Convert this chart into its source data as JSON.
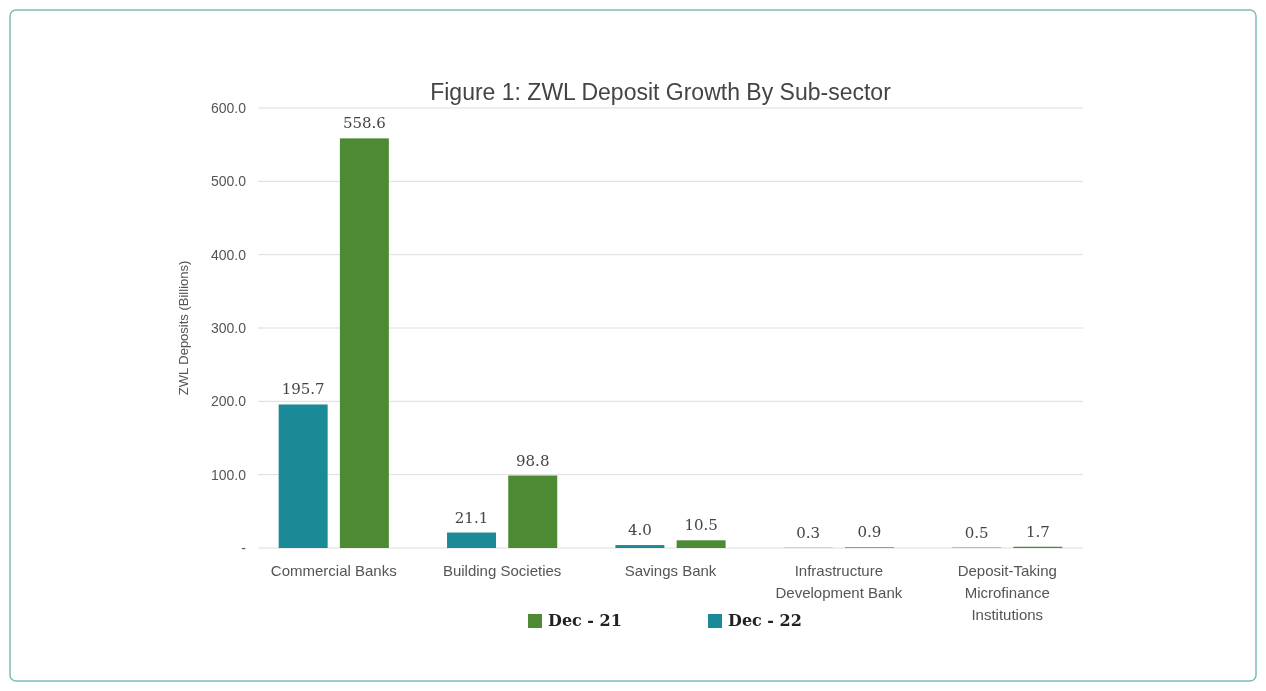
{
  "chart_data": {
    "type": "bar",
    "title": "Figure 1: ZWL Deposit Growth By Sub-sector",
    "ylabel": "ZWL Deposits (Billions)",
    "categories": [
      "Commercial Banks",
      "Building Societies",
      "Savings Bank",
      "Infrastructure Development Bank",
      "Deposit-Taking Microfinance Institutions"
    ],
    "series": [
      {
        "name": "Dec - 22",
        "color": "#1a8a96",
        "values": [
          195.7,
          21.1,
          4.0,
          0.3,
          0.5
        ],
        "value_labels": [
          "195.7",
          "21.1",
          "4.0",
          "0.3",
          "0.5"
        ]
      },
      {
        "name": "Dec - 21",
        "color": "#4e8a34",
        "values": [
          558.6,
          98.8,
          10.5,
          0.9,
          1.7
        ],
        "value_labels": [
          "558.6",
          "98.8",
          "10.5",
          "0.9",
          "1.7"
        ]
      }
    ],
    "ylim": [
      0,
      600
    ],
    "yticks": [
      {
        "value": 0,
        "label": "-"
      },
      {
        "value": 100,
        "label": "100.0"
      },
      {
        "value": 200,
        "label": "200.0"
      },
      {
        "value": 300,
        "label": "300.0"
      },
      {
        "value": 400,
        "label": "400.0"
      },
      {
        "value": 500,
        "label": "500.0"
      },
      {
        "value": 600,
        "label": "600.0"
      }
    ],
    "grid": "y",
    "legend": "bottom"
  }
}
